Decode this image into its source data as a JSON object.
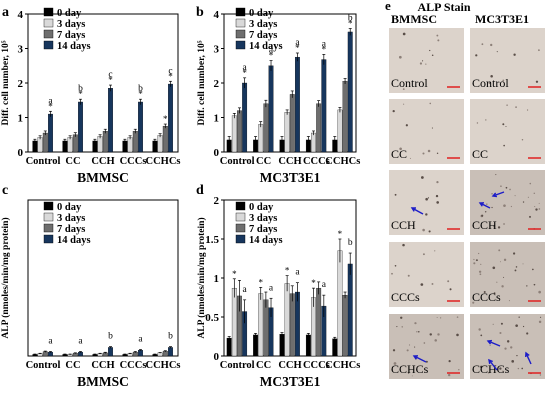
{
  "series_colors": [
    "#000000",
    "#d9d9d9",
    "#6e6e6e",
    "#17365d"
  ],
  "scalebar_color": "#e02020",
  "arrow_color": "#1c1cc8",
  "chart_data": [
    {
      "type": "bar",
      "panel_label": "a",
      "title": "BMMSC",
      "ylabel": "Diff. cell number, 10⁵",
      "ylim": [
        0,
        4
      ],
      "yticks": [
        "0",
        "1",
        "2",
        "3",
        "4"
      ],
      "categories": [
        "Control",
        "CC",
        "CCH",
        "CCCs",
        "CCHCs"
      ],
      "series": [
        {
          "name": "0 day",
          "values": [
            0.32,
            0.32,
            0.32,
            0.32,
            0.32
          ],
          "errors": [
            0.05,
            0.05,
            0.05,
            0.05,
            0.05
          ]
        },
        {
          "name": "3 days",
          "values": [
            0.42,
            0.42,
            0.45,
            0.42,
            0.48
          ],
          "errors": [
            0.05,
            0.05,
            0.05,
            0.05,
            0.05
          ]
        },
        {
          "name": "7 days",
          "values": [
            0.55,
            0.5,
            0.6,
            0.6,
            0.75
          ],
          "errors": [
            0.06,
            0.06,
            0.06,
            0.06,
            0.06
          ]
        },
        {
          "name": "14 days",
          "values": [
            1.1,
            1.45,
            1.85,
            1.45,
            1.97
          ],
          "errors": [
            0.08,
            0.08,
            0.09,
            0.08,
            0.08
          ]
        }
      ],
      "annotations": [
        {
          "category": "Control",
          "series": "14 days",
          "text": "a"
        },
        {
          "category": "CC",
          "series": "14 days",
          "text": "b"
        },
        {
          "category": "CCH",
          "series": "14 days",
          "text": "c"
        },
        {
          "category": "CCCs",
          "series": "14 days",
          "text": "b"
        },
        {
          "category": "CCHCs",
          "series": "14 days",
          "text": "c"
        },
        {
          "category": "Control",
          "series": "14 days",
          "text": "*"
        },
        {
          "category": "CC",
          "series": "14 days",
          "text": "*"
        },
        {
          "category": "CCH",
          "series": "14 days",
          "text": "*"
        },
        {
          "category": "CCCs",
          "series": "14 days",
          "text": "*"
        },
        {
          "category": "CCHCs",
          "series": "14 days",
          "text": "*"
        },
        {
          "category": "CCHCs",
          "series": "7 days",
          "text": "*"
        }
      ],
      "legend": "top-left"
    },
    {
      "type": "bar",
      "panel_label": "b",
      "title": "MC3T3E1",
      "ylabel": "Diff. cell number, 10⁵",
      "ylim": [
        0,
        4
      ],
      "yticks": [
        "0",
        "1",
        "2",
        "3",
        "4"
      ],
      "categories": [
        "Control",
        "CC",
        "CCH",
        "CCCs",
        "CCHCs"
      ],
      "series": [
        {
          "name": "0 day",
          "values": [
            0.35,
            0.35,
            0.35,
            0.35,
            0.35
          ],
          "errors": [
            0.1,
            0.1,
            0.1,
            0.1,
            0.1
          ]
        },
        {
          "name": "3 days",
          "values": [
            1.05,
            0.8,
            1.15,
            0.55,
            1.22
          ],
          "errors": [
            0.07,
            0.08,
            0.07,
            0.06,
            0.07
          ]
        },
        {
          "name": "7 days",
          "values": [
            1.2,
            1.4,
            1.67,
            1.4,
            2.05
          ],
          "errors": [
            0.08,
            0.1,
            0.1,
            0.09,
            0.08
          ]
        },
        {
          "name": "14 days",
          "values": [
            2.0,
            2.5,
            2.75,
            2.68,
            3.48
          ],
          "errors": [
            0.15,
            0.15,
            0.12,
            0.15,
            0.1
          ]
        }
      ],
      "annotations": [
        {
          "category": "Control",
          "series": "14 days",
          "text": "a"
        },
        {
          "category": "CC",
          "series": "14 days",
          "text": "a"
        },
        {
          "category": "CCH",
          "series": "14 days",
          "text": "a"
        },
        {
          "category": "CCCs",
          "series": "14 days",
          "text": "a"
        },
        {
          "category": "CCHCs",
          "series": "14 days",
          "text": "b"
        },
        {
          "category": "Control",
          "series": "14 days",
          "text": "*"
        },
        {
          "category": "CC",
          "series": "14 days",
          "text": "*"
        },
        {
          "category": "CCH",
          "series": "14 days",
          "text": "*"
        },
        {
          "category": "CCCs",
          "series": "14 days",
          "text": "*"
        },
        {
          "category": "CCHCs",
          "series": "14 days",
          "text": "*"
        }
      ],
      "legend": "top-left"
    },
    {
      "type": "bar",
      "panel_label": "c",
      "title": "BMMSC",
      "ylabel": "ALP (nmoles/min/mg protein)",
      "ylim": [
        0,
        2
      ],
      "yticks": [],
      "categories": [
        "Control",
        "CC",
        "CCH",
        "CCCs",
        "CCHCs"
      ],
      "series": [
        {
          "name": "0 day",
          "values": [
            0.02,
            0.02,
            0.02,
            0.02,
            0.02
          ],
          "errors": [
            0.005,
            0.005,
            0.005,
            0.005,
            0.005
          ]
        },
        {
          "name": "3 days",
          "values": [
            0.03,
            0.02,
            0.03,
            0.03,
            0.04
          ],
          "errors": [
            0.005,
            0.005,
            0.005,
            0.005,
            0.005
          ]
        },
        {
          "name": "7 days",
          "values": [
            0.055,
            0.035,
            0.04,
            0.05,
            0.06
          ],
          "errors": [
            0.008,
            0.006,
            0.008,
            0.008,
            0.008
          ]
        },
        {
          "name": "14 days",
          "values": [
            0.05,
            0.05,
            0.11,
            0.075,
            0.11
          ],
          "errors": [
            0.008,
            0.008,
            0.01,
            0.008,
            0.01
          ]
        }
      ],
      "annotations": [
        {
          "category": "Control",
          "series": "14 days",
          "text": "a"
        },
        {
          "category": "CC",
          "series": "14 days",
          "text": "a"
        },
        {
          "category": "CCH",
          "series": "14 days",
          "text": "b"
        },
        {
          "category": "CCCs",
          "series": "14 days",
          "text": "a"
        },
        {
          "category": "CCHCs",
          "series": "14 days",
          "text": "b"
        }
      ],
      "legend": "top-left"
    },
    {
      "type": "bar",
      "panel_label": "d",
      "title": "MC3T3E1",
      "ylabel": "ALP (nmoles/min/mg protein)",
      "ylim": [
        0,
        2
      ],
      "yticks": [
        "0",
        "0.5",
        "1",
        "1.5",
        "2"
      ],
      "categories": [
        "Control",
        "CC",
        "CCH",
        "CCCs",
        "CCHCs"
      ],
      "series": [
        {
          "name": "0 day",
          "values": [
            0.23,
            0.27,
            0.28,
            0.27,
            0.22
          ],
          "errors": [
            0.02,
            0.02,
            0.02,
            0.02,
            0.02
          ]
        },
        {
          "name": "3 days",
          "values": [
            0.87,
            0.8,
            0.93,
            0.75,
            1.35
          ],
          "errors": [
            0.12,
            0.08,
            0.1,
            0.12,
            0.15
          ]
        },
        {
          "name": "7 days",
          "values": [
            0.77,
            0.72,
            0.8,
            0.87,
            0.78
          ],
          "errors": [
            0.2,
            0.1,
            0.1,
            0.08,
            0.04
          ]
        },
        {
          "name": "14 days",
          "values": [
            0.57,
            0.62,
            0.82,
            0.64,
            1.18
          ],
          "errors": [
            0.15,
            0.12,
            0.12,
            0.14,
            0.14
          ]
        }
      ],
      "annotations": [
        {
          "category": "Control",
          "series": "3 days",
          "text": "*"
        },
        {
          "category": "CC",
          "series": "3 days",
          "text": "*"
        },
        {
          "category": "CCH",
          "series": "3 days",
          "text": "*"
        },
        {
          "category": "CCCs",
          "series": "3 days",
          "text": "*"
        },
        {
          "category": "CCHCs",
          "series": "3 days",
          "text": "*"
        },
        {
          "category": "Control",
          "series": "14 days",
          "text": "a"
        },
        {
          "category": "CC",
          "series": "14 days",
          "text": "a"
        },
        {
          "category": "CCH",
          "series": "14 days",
          "text": "a"
        },
        {
          "category": "CCCs",
          "series": "14 days",
          "text": "a"
        },
        {
          "category": "CCHCs",
          "series": "14 days",
          "text": "b"
        }
      ],
      "legend": "top-left"
    }
  ],
  "alp_stain": {
    "panel_label": "e",
    "title": "ALP Stain",
    "columns": [
      "BMMSC",
      "MC3T3E1"
    ],
    "rows": [
      "Control",
      "CC",
      "CCH",
      "CCCs",
      "CCHCs"
    ]
  }
}
